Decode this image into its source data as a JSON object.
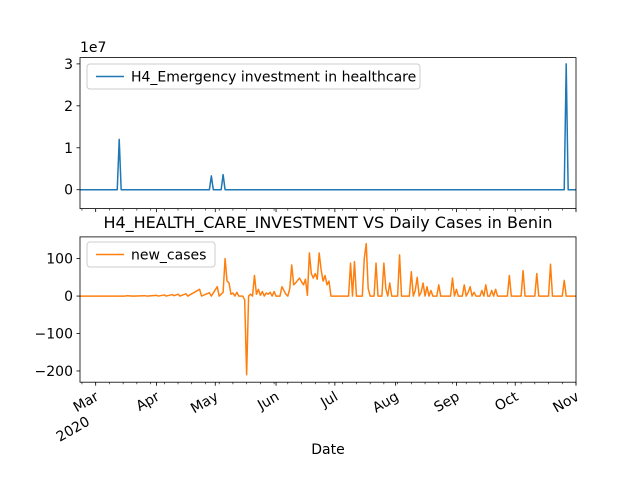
{
  "chart_data": [
    {
      "type": "line",
      "title": "",
      "multiplier_label": "1e7",
      "xlabel": "",
      "ylabel": "",
      "xlim": [
        "2020-02-22",
        "2020-11-01"
      ],
      "ylim": [
        -0.45,
        3.15
      ],
      "yticks": [
        0,
        1,
        2,
        3
      ],
      "ytick_labels": [
        "0",
        "1",
        "2",
        "3"
      ],
      "grid": false,
      "legend_position": "top-left",
      "series": [
        {
          "name": "H4_Emergency investment in healthcare",
          "color": "#1f77b4",
          "points": [
            [
              "2020-02-22",
              0
            ],
            [
              "2020-03-12",
              0
            ],
            [
              "2020-03-13",
              1.2
            ],
            [
              "2020-03-14",
              0
            ],
            [
              "2020-04-28",
              0
            ],
            [
              "2020-04-29",
              0.33
            ],
            [
              "2020-04-30",
              0
            ],
            [
              "2020-05-04",
              0
            ],
            [
              "2020-05-05",
              0.36
            ],
            [
              "2020-05-06",
              0
            ],
            [
              "2020-10-26",
              0
            ],
            [
              "2020-10-27",
              3.0
            ],
            [
              "2020-10-28",
              0
            ],
            [
              "2020-11-01",
              0
            ]
          ]
        }
      ]
    },
    {
      "type": "line",
      "title": "H4_HEALTH_CARE_INVESTMENT VS Daily Cases in Benin",
      "xlabel": "Date",
      "ylabel": "",
      "xlim": [
        "2020-02-22",
        "2020-11-01"
      ],
      "ylim": [
        -230,
        158
      ],
      "yticks": [
        100,
        0,
        -100,
        -200
      ],
      "ytick_labels": [
        "100",
        "0",
        "−100",
        "−200"
      ],
      "grid": false,
      "legend_position": "top-left",
      "series": [
        {
          "name": "new_cases",
          "color": "#ff7f0e",
          "points": [
            [
              "2020-02-22",
              0
            ],
            [
              "2020-03-16",
              0
            ],
            [
              "2020-03-17",
              1
            ],
            [
              "2020-03-20",
              0
            ],
            [
              "2020-03-26",
              1
            ],
            [
              "2020-03-27",
              0
            ],
            [
              "2020-04-01",
              2
            ],
            [
              "2020-04-02",
              0
            ],
            [
              "2020-04-05",
              3
            ],
            [
              "2020-04-06",
              0
            ],
            [
              "2020-04-09",
              4
            ],
            [
              "2020-04-10",
              1
            ],
            [
              "2020-04-12",
              5
            ],
            [
              "2020-04-13",
              0
            ],
            [
              "2020-04-16",
              6
            ],
            [
              "2020-04-17",
              0
            ],
            [
              "2020-04-23",
              18
            ],
            [
              "2020-04-24",
              0
            ],
            [
              "2020-04-28",
              9
            ],
            [
              "2020-04-29",
              0
            ],
            [
              "2020-05-02",
              25
            ],
            [
              "2020-05-03",
              0
            ],
            [
              "2020-05-05",
              10
            ],
            [
              "2020-05-06",
              100
            ],
            [
              "2020-05-07",
              40
            ],
            [
              "2020-05-08",
              35
            ],
            [
              "2020-05-09",
              5
            ],
            [
              "2020-05-10",
              8
            ],
            [
              "2020-05-11",
              0
            ],
            [
              "2020-05-12",
              10
            ],
            [
              "2020-05-13",
              0
            ],
            [
              "2020-05-15",
              0
            ],
            [
              "2020-05-16",
              -10
            ],
            [
              "2020-05-17",
              -210
            ],
            [
              "2020-05-18",
              0
            ],
            [
              "2020-05-19",
              5
            ],
            [
              "2020-05-20",
              0
            ],
            [
              "2020-05-21",
              55
            ],
            [
              "2020-05-22",
              5
            ],
            [
              "2020-05-23",
              18
            ],
            [
              "2020-05-24",
              2
            ],
            [
              "2020-05-25",
              12
            ],
            [
              "2020-05-26",
              0
            ],
            [
              "2020-05-27",
              8
            ],
            [
              "2020-05-28",
              5
            ],
            [
              "2020-05-29",
              10
            ],
            [
              "2020-05-30",
              0
            ],
            [
              "2020-05-31",
              12
            ],
            [
              "2020-06-01",
              0
            ],
            [
              "2020-06-03",
              0
            ],
            [
              "2020-06-04",
              25
            ],
            [
              "2020-06-05",
              15
            ],
            [
              "2020-06-06",
              5
            ],
            [
              "2020-06-07",
              0
            ],
            [
              "2020-06-08",
              20
            ],
            [
              "2020-06-09",
              83
            ],
            [
              "2020-06-10",
              30
            ],
            [
              "2020-06-11",
              35
            ],
            [
              "2020-06-12",
              42
            ],
            [
              "2020-06-13",
              48
            ],
            [
              "2020-06-14",
              38
            ],
            [
              "2020-06-15",
              30
            ],
            [
              "2020-06-16",
              45
            ],
            [
              "2020-06-17",
              2
            ],
            [
              "2020-06-18",
              115
            ],
            [
              "2020-06-19",
              60
            ],
            [
              "2020-06-20",
              48
            ],
            [
              "2020-06-21",
              60
            ],
            [
              "2020-06-22",
              45
            ],
            [
              "2020-06-23",
              115
            ],
            [
              "2020-06-24",
              70
            ],
            [
              "2020-06-25",
              40
            ],
            [
              "2020-06-26",
              55
            ],
            [
              "2020-06-27",
              30
            ],
            [
              "2020-06-28",
              40
            ],
            [
              "2020-06-29",
              0
            ],
            [
              "2020-07-08",
              0
            ],
            [
              "2020-07-09",
              88
            ],
            [
              "2020-07-10",
              0
            ],
            [
              "2020-07-11",
              92
            ],
            [
              "2020-07-12",
              0
            ],
            [
              "2020-07-15",
              0
            ],
            [
              "2020-07-16",
              100
            ],
            [
              "2020-07-17",
              140
            ],
            [
              "2020-07-18",
              20
            ],
            [
              "2020-07-19",
              0
            ],
            [
              "2020-07-21",
              0
            ],
            [
              "2020-07-22",
              88
            ],
            [
              "2020-07-23",
              0
            ],
            [
              "2020-07-25",
              0
            ],
            [
              "2020-07-26",
              88
            ],
            [
              "2020-07-27",
              20
            ],
            [
              "2020-07-28",
              0
            ],
            [
              "2020-07-29",
              35
            ],
            [
              "2020-07-30",
              0
            ],
            [
              "2020-08-02",
              0
            ],
            [
              "2020-08-03",
              110
            ],
            [
              "2020-08-04",
              0
            ],
            [
              "2020-08-08",
              0
            ],
            [
              "2020-08-09",
              65
            ],
            [
              "2020-08-10",
              0
            ],
            [
              "2020-08-11",
              15
            ],
            [
              "2020-08-12",
              50
            ],
            [
              "2020-08-13",
              0
            ],
            [
              "2020-08-14",
              10
            ],
            [
              "2020-08-15",
              35
            ],
            [
              "2020-08-16",
              0
            ],
            [
              "2020-08-17",
              25
            ],
            [
              "2020-08-18",
              0
            ],
            [
              "2020-08-19",
              15
            ],
            [
              "2020-08-20",
              0
            ],
            [
              "2020-08-22",
              0
            ],
            [
              "2020-08-23",
              30
            ],
            [
              "2020-08-24",
              0
            ],
            [
              "2020-08-29",
              0
            ],
            [
              "2020-08-30",
              48
            ],
            [
              "2020-08-31",
              0
            ],
            [
              "2020-09-01",
              18
            ],
            [
              "2020-09-02",
              0
            ],
            [
              "2020-09-04",
              0
            ],
            [
              "2020-09-05",
              30
            ],
            [
              "2020-09-06",
              0
            ],
            [
              "2020-09-07",
              10
            ],
            [
              "2020-09-08",
              25
            ],
            [
              "2020-09-09",
              0
            ],
            [
              "2020-09-10",
              10
            ],
            [
              "2020-09-11",
              0
            ],
            [
              "2020-09-13",
              0
            ],
            [
              "2020-09-14",
              15
            ],
            [
              "2020-09-15",
              0
            ],
            [
              "2020-09-16",
              30
            ],
            [
              "2020-09-17",
              0
            ],
            [
              "2020-09-18",
              0
            ],
            [
              "2020-09-19",
              15
            ],
            [
              "2020-09-20",
              0
            ],
            [
              "2020-09-21",
              18
            ],
            [
              "2020-09-22",
              0
            ],
            [
              "2020-09-27",
              0
            ],
            [
              "2020-09-28",
              55
            ],
            [
              "2020-09-29",
              0
            ],
            [
              "2020-10-04",
              0
            ],
            [
              "2020-10-05",
              68
            ],
            [
              "2020-10-06",
              0
            ],
            [
              "2020-10-11",
              0
            ],
            [
              "2020-10-12",
              60
            ],
            [
              "2020-10-13",
              0
            ],
            [
              "2020-10-18",
              0
            ],
            [
              "2020-10-19",
              85
            ],
            [
              "2020-10-20",
              0
            ],
            [
              "2020-10-25",
              0
            ],
            [
              "2020-10-26",
              42
            ],
            [
              "2020-10-27",
              0
            ],
            [
              "2020-11-01",
              0
            ]
          ]
        }
      ]
    }
  ],
  "x_axis": {
    "ticks": [
      {
        "date": "2020-03-01",
        "label": "Mar",
        "sublabel": "2020"
      },
      {
        "date": "2020-04-01",
        "label": "Apr",
        "sublabel": ""
      },
      {
        "date": "2020-05-01",
        "label": "May",
        "sublabel": ""
      },
      {
        "date": "2020-06-01",
        "label": "Jun",
        "sublabel": ""
      },
      {
        "date": "2020-07-01",
        "label": "Jul",
        "sublabel": ""
      },
      {
        "date": "2020-08-01",
        "label": "Aug",
        "sublabel": ""
      },
      {
        "date": "2020-09-01",
        "label": "Sep",
        "sublabel": ""
      },
      {
        "date": "2020-10-01",
        "label": "Oct",
        "sublabel": ""
      },
      {
        "date": "2020-11-01",
        "label": "Nov",
        "sublabel": ""
      }
    ],
    "minor_tick_interval_days": 7
  }
}
